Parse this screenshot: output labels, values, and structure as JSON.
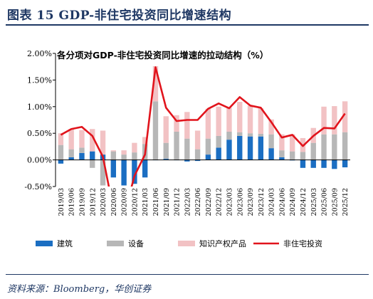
{
  "figure": {
    "title": "图表 15 GDP-非住宅投资同比增速结构",
    "source": "资料来源：Bloomberg，华创证券"
  },
  "colors": {
    "title": "#1f3864",
    "construction": "#1b6ec2",
    "equipment": "#b7b7b7",
    "ip": "#f2c2c4",
    "total_line": "#e1141c"
  },
  "chart_data": {
    "type": "bar",
    "stacked": true,
    "title": "各分项对GDP-非住宅投资同比增速的拉动结构（%）",
    "xlabel": "",
    "ylabel": "",
    "ylim": [
      -0.5,
      2.0
    ],
    "yticks": [
      "2.00%",
      "1.50%",
      "1.00%",
      "0.50%",
      "0.00%",
      "-0.50%"
    ],
    "ytick_values": [
      2.0,
      1.5,
      1.0,
      0.5,
      0.0,
      -0.5
    ],
    "legend_position": "bottom",
    "categories": [
      "2019/03",
      "2019/06",
      "2019/09",
      "2019/12",
      "2020/03",
      "2020/06",
      "2020/09",
      "2020/12",
      "2021/03",
      "2021/06",
      "2021/09",
      "2021/12",
      "2022/03",
      "2022/06",
      "2022/09",
      "2022/12",
      "2023/03",
      "2023/06",
      "2023/09",
      "2023/12",
      "2024/03",
      "2024/06",
      "2024/09",
      "2024/12",
      "2025/03",
      "2025/06",
      "2025/09",
      "2025/12"
    ],
    "all_quarters": [
      "2019/03",
      "2019/06",
      "2019/09",
      "2019/12",
      "2020/03",
      "2020/06",
      "2020/09",
      "2020/12",
      "2021/03",
      "2021/06",
      "2021/09",
      "2021/12",
      "2022/03",
      "2022/06",
      "2022/09",
      "2022/12",
      "2023/03",
      "2023/06",
      "2023/09",
      "2023/12",
      "2024/03",
      "2024/06",
      "2024/09",
      "2024/12",
      "2025/03",
      "2025/06",
      "2025/09",
      "2025/12"
    ],
    "series": [
      {
        "name": "建筑",
        "kind": "bar",
        "values": [
          -0.07,
          0.05,
          0.13,
          0.16,
          0.1,
          -0.33,
          -0.48,
          -0.45,
          -0.33,
          0.0,
          0.02,
          0.0,
          -0.03,
          -0.02,
          0.1,
          0.23,
          0.38,
          0.45,
          0.44,
          0.44,
          0.22,
          0.05,
          -0.01,
          -0.15,
          -0.15,
          -0.15,
          -0.17,
          -0.14
        ]
      },
      {
        "name": "设备",
        "kind": "bar",
        "values": [
          0.28,
          0.15,
          0.1,
          -0.15,
          -0.48,
          0.16,
          0.1,
          0.14,
          0.3,
          1.1,
          0.3,
          0.53,
          0.4,
          0.2,
          0.3,
          0.22,
          0.15,
          0.07,
          0.06,
          0.05,
          0.26,
          0.13,
          0.16,
          0.15,
          0.32,
          0.48,
          0.48,
          0.52
        ]
      },
      {
        "name": "知识产权产品",
        "kind": "bar",
        "values": [
          0.22,
          0.38,
          0.33,
          0.42,
          0.45,
          0.02,
          0.08,
          0.18,
          0.13,
          0.66,
          0.5,
          0.31,
          0.5,
          0.35,
          0.56,
          0.55,
          0.45,
          0.57,
          0.52,
          0.48,
          0.28,
          0.3,
          0.32,
          0.26,
          0.28,
          0.52,
          0.53,
          0.58
        ]
      },
      {
        "name": "非住宅投资",
        "kind": "line",
        "values": [
          0.47,
          0.58,
          0.62,
          0.45,
          0.06,
          -0.93,
          -1.05,
          -0.3,
          0.1,
          1.74,
          0.98,
          0.73,
          0.75,
          0.75,
          0.96,
          1.06,
          0.97,
          1.18,
          1.02,
          0.98,
          0.71,
          0.42,
          0.47,
          0.26,
          0.45,
          0.6,
          0.59,
          0.87
        ]
      }
    ]
  }
}
